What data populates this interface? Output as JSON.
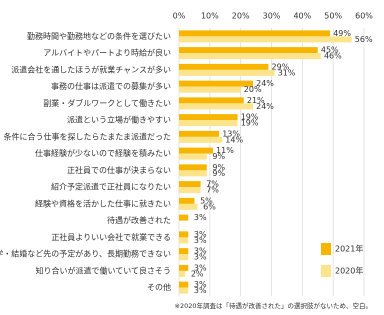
{
  "chart_data": {
    "type": "hbar",
    "categories": [
      "勤務時間や勤務地などの条件を選びたい",
      "アルバイトやパートより時給が良い",
      "派遣会社を通したほうが就業チャンスが多い",
      "事務の仕事は派遣での募集が多い",
      "副業・ダブルワークとして働きたい",
      "派遣という立場が働きやすい",
      "条件に合う仕事を探したらたまたま派遣だった",
      "仕事経験が少ないので経験を積みたい",
      "正社員での仕事が決まらない",
      "紹介予定派遣で正社員になりたい",
      "経験や資格を活かした仕事に就きたい",
      "待遇が改善された",
      "正社員よりいい会社で就業できる",
      "留学・結婚など先の予定があり、長期勤務できない",
      "知り合いが派遣で働いていて良さそう",
      "その他"
    ],
    "series": [
      {
        "name": "2021年",
        "color": "#f7b500",
        "values": [
          49,
          45,
          29,
          24,
          21,
          19,
          13,
          11,
          9,
          7,
          5,
          3,
          3,
          3,
          3,
          3
        ],
        "value_labels": [
          "49%",
          "45%",
          "29%",
          "24%",
          "21%",
          "19%",
          "13%",
          "11%",
          "9%",
          "7%",
          "5%",
          "3%",
          "3%",
          "3%",
          "3%",
          "3%"
        ]
      },
      {
        "name": "2020年",
        "color": "#fce48c",
        "values": [
          56,
          46,
          31,
          20,
          24,
          19,
          14,
          9,
          9,
          7,
          6,
          null,
          3,
          3,
          2,
          3
        ],
        "value_labels": [
          "56%",
          "46%",
          "31%",
          "20%",
          "24%",
          "19%",
          "14%",
          "9%",
          "9%",
          "7%",
          "6%",
          null,
          "3%",
          "3%",
          "2%",
          "3%"
        ]
      }
    ],
    "xlim": [
      0,
      60
    ],
    "xticks": [
      {
        "value": 0,
        "label": "0%"
      },
      {
        "value": 10,
        "label": "10%"
      },
      {
        "value": 20,
        "label": "20%"
      },
      {
        "value": 30,
        "label": "30%"
      },
      {
        "value": 40,
        "label": "40%"
      },
      {
        "value": 50,
        "label": "50%"
      },
      {
        "value": 60,
        "label": "60%"
      }
    ],
    "grid": true,
    "legend": "lower right",
    "footnote": "※2020年調査は「待遇が改善された」の選択肢がないため、空白。"
  }
}
